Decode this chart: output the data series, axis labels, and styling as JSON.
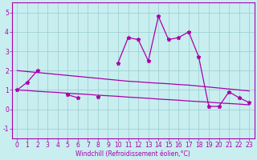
{
  "x": [
    0,
    1,
    2,
    3,
    4,
    5,
    6,
    7,
    8,
    9,
    10,
    11,
    12,
    13,
    14,
    15,
    16,
    17,
    18,
    19,
    20,
    21,
    22,
    23
  ],
  "line1_y": [
    1.0,
    1.4,
    2.0,
    null,
    null,
    0.75,
    0.6,
    null,
    0.65,
    null,
    2.4,
    3.7,
    3.6,
    2.5,
    4.8,
    3.6,
    3.7,
    4.0,
    2.7,
    0.15,
    0.15,
    0.9,
    0.6,
    0.35
  ],
  "line_upper_y": [
    2.0,
    1.95,
    1.9,
    1.85,
    1.8,
    1.75,
    1.7,
    1.65,
    1.6,
    1.55,
    1.5,
    1.45,
    1.42,
    1.38,
    1.35,
    1.32,
    1.28,
    1.25,
    1.2,
    1.15,
    1.1,
    1.05,
    1.0,
    0.95
  ],
  "line_lower_y": [
    1.0,
    0.97,
    0.93,
    0.9,
    0.87,
    0.83,
    0.8,
    0.77,
    0.73,
    0.7,
    0.67,
    0.63,
    0.6,
    0.57,
    0.53,
    0.5,
    0.47,
    0.43,
    0.4,
    0.37,
    0.33,
    0.3,
    0.27,
    0.23
  ],
  "line_color": "#aa00aa",
  "bg_color": "#c8eef0",
  "grid_color": "#99cccc",
  "xlabel": "Windchill (Refroidissement éolien,°C)",
  "ylim": [
    -1.5,
    5.5
  ],
  "xlim": [
    -0.5,
    23.5
  ],
  "yticks": [
    -1,
    0,
    1,
    2,
    3,
    4,
    5
  ],
  "xticks": [
    0,
    1,
    2,
    3,
    4,
    5,
    6,
    7,
    8,
    9,
    10,
    11,
    12,
    13,
    14,
    15,
    16,
    17,
    18,
    19,
    20,
    21,
    22,
    23
  ],
  "tick_fontsize": 5.5,
  "label_fontsize": 5.5
}
